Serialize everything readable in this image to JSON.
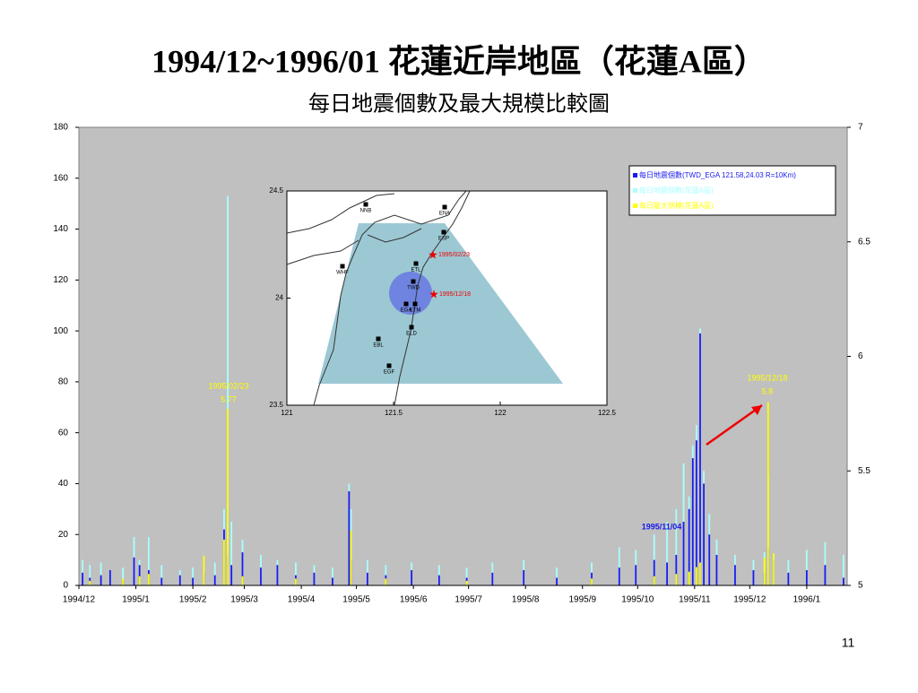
{
  "page_number": "11",
  "chart_data": {
    "type": "bar",
    "title": "1994/12~1996/01 花蓮近岸地區（花蓮A區）",
    "subtitle": "每日地震個數及最大規模比較圖",
    "xlim": [
      0,
      418
    ],
    "xticks": [
      {
        "value": 0,
        "label": "1994/12"
      },
      {
        "value": 31,
        "label": "1995/1"
      },
      {
        "value": 62,
        "label": "1995/2"
      },
      {
        "value": 90,
        "label": "1995/3"
      },
      {
        "value": 121,
        "label": "1995/4"
      },
      {
        "value": 151,
        "label": "1995/5"
      },
      {
        "value": 182,
        "label": "1995/6"
      },
      {
        "value": 212,
        "label": "1995/7"
      },
      {
        "value": 243,
        "label": "1995/8"
      },
      {
        "value": 274,
        "label": "1995/9"
      },
      {
        "value": 304,
        "label": "1995/10"
      },
      {
        "value": 335,
        "label": "1995/11"
      },
      {
        "value": 365,
        "label": "1995/12"
      },
      {
        "value": 396,
        "label": "1996/1"
      }
    ],
    "ylim": [
      0,
      180
    ],
    "yticks": [
      0,
      20,
      40,
      60,
      80,
      100,
      120,
      140,
      160,
      180
    ],
    "y2lim": [
      5,
      7
    ],
    "y2ticks": [
      5,
      5.5,
      6,
      6.5,
      7
    ],
    "x": [
      2,
      6,
      12,
      17,
      24,
      30,
      33,
      38,
      45,
      55,
      62,
      68,
      74,
      79,
      81,
      83,
      89,
      99,
      108,
      118,
      128,
      138,
      147,
      148,
      157,
      167,
      181,
      196,
      211,
      225,
      242,
      260,
      279,
      294,
      303,
      313,
      320,
      325,
      329,
      332,
      334,
      336,
      338,
      340,
      343,
      347,
      357,
      367,
      373,
      375,
      378,
      386,
      396,
      406,
      416
    ],
    "series": [
      {
        "name": "每日地震個數(花蓮A區)",
        "color": "#a8ffff",
        "values": [
          10,
          8,
          9,
          5,
          7,
          19,
          10,
          19,
          8,
          6,
          7,
          8,
          9,
          30,
          153,
          25,
          18,
          12,
          10,
          9,
          8,
          7,
          40,
          30,
          10,
          8,
          9,
          8,
          7,
          9,
          10,
          7,
          9,
          15,
          14,
          20,
          25,
          30,
          48,
          35,
          55,
          63,
          101,
          45,
          28,
          18,
          12,
          10,
          13,
          43,
          12,
          10,
          14,
          17,
          12
        ]
      },
      {
        "name": "每日地震個數(TWD_EGA 121.58,24.03 R=10Km)",
        "color": "#1a1aee",
        "values": [
          5,
          3,
          4,
          6,
          2,
          11,
          8,
          6,
          3,
          4,
          3,
          5,
          4,
          22,
          12,
          8,
          13,
          7,
          8,
          4,
          5,
          3,
          37,
          10,
          5,
          4,
          6,
          4,
          3,
          5,
          6,
          3,
          5,
          7,
          8,
          10,
          9,
          12,
          25,
          30,
          50,
          57,
          99,
          40,
          20,
          12,
          8,
          6,
          5,
          15,
          10,
          5,
          6,
          8,
          3
        ]
      },
      {
        "name": "每日最大規模(花蓮A區)",
        "color": "#ffff00",
        "axis": "y2",
        "values": [
          null,
          5.02,
          null,
          null,
          5.03,
          null,
          5.04,
          5.05,
          null,
          null,
          null,
          5.13,
          null,
          5.2,
          5.77,
          null,
          5.04,
          null,
          null,
          5.03,
          null,
          null,
          null,
          5.24,
          null,
          5.03,
          null,
          null,
          5.02,
          null,
          null,
          null,
          5.03,
          null,
          null,
          5.04,
          null,
          5.05,
          null,
          5.06,
          null,
          5.08,
          5.1,
          null,
          null,
          null,
          null,
          null,
          5.12,
          5.8,
          5.14,
          null,
          null,
          null,
          null
        ]
      }
    ],
    "annotations": [
      "1995/02/23",
      "5.77",
      "1995/12/18",
      "5.8",
      "1995/11/04"
    ],
    "legend": "upper right"
  },
  "map": {
    "xticks": [
      121,
      121.5,
      122,
      122.5
    ],
    "yticks": [
      24.5,
      24,
      23.5
    ],
    "stations": [
      "NNB",
      "ENA",
      "ESP",
      "WHF",
      "ETL",
      "TWD",
      "EGA",
      "ETM",
      "ELD",
      "EBL",
      "EGF"
    ],
    "events": [
      "1995/02/23",
      "1995/12/18"
    ]
  }
}
